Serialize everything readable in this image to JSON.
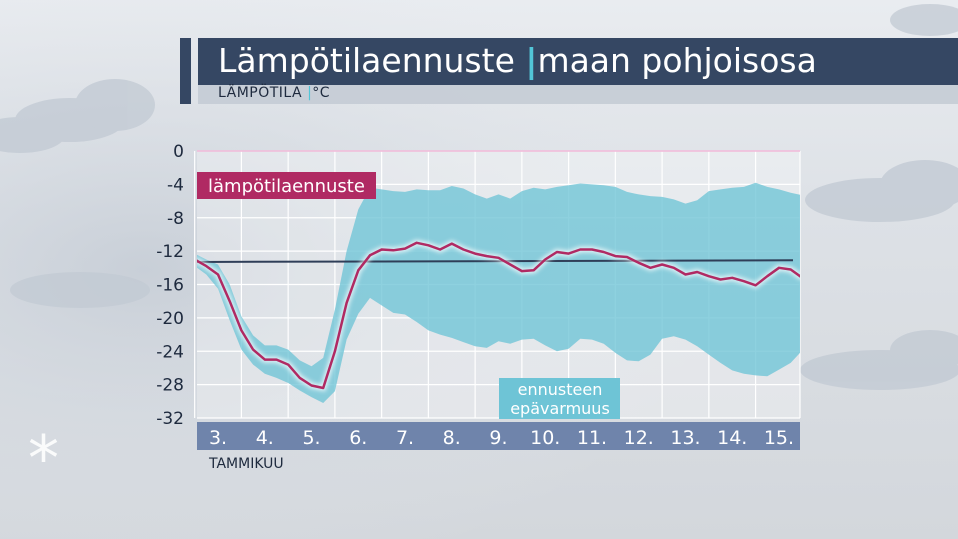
{
  "header": {
    "title_main": "Lämpötilaennuste",
    "title_sep": "|",
    "title_region": "maan pohjoisosa",
    "subtitle_quantity": "LÄMPÖTILA",
    "subtitle_sep": "|",
    "subtitle_unit": "°C"
  },
  "decor": {
    "asterisk_glyph": "*"
  },
  "colors": {
    "title_bg": "#354763",
    "accent_cyan": "#52c6d8",
    "forecast_line": "#b02a63",
    "uncertainty_band": "#6ec4d6",
    "average_line": "#2f3e58",
    "axis_bar": "#6f84ab"
  },
  "chart_data": {
    "type": "line",
    "y_ticks": [
      0,
      -4,
      -8,
      -12,
      -16,
      -20,
      -24,
      -28,
      -32
    ],
    "ylim": [
      -32,
      0
    ],
    "x_ticks": [
      "3.",
      "4.",
      "5.",
      "6.",
      "7.",
      "8.",
      "9.",
      "10.",
      "11.",
      "12.",
      "13.",
      "14.",
      "15."
    ],
    "xlim": [
      2.55,
      15.45
    ],
    "xlabel": "TAMMIKUU",
    "grid": true,
    "series": [
      {
        "name": "lämpötilaennuste",
        "x": [
          2.5,
          2.75,
          3.0,
          3.25,
          3.5,
          3.75,
          4.0,
          4.25,
          4.5,
          4.75,
          5.0,
          5.25,
          5.5,
          5.75,
          6.0,
          6.25,
          6.5,
          6.75,
          7.0,
          7.25,
          7.5,
          7.75,
          8.0,
          8.25,
          8.5,
          8.75,
          9.0,
          9.25,
          9.5,
          9.75,
          10.0,
          10.25,
          10.5,
          10.75,
          11.0,
          11.25,
          11.5,
          11.75,
          12.0,
          12.25,
          12.5,
          12.75,
          13.0,
          13.25,
          13.5,
          13.75,
          14.0,
          14.25,
          14.5,
          14.75,
          15.0,
          15.25,
          15.5
        ],
        "values": [
          -13.0,
          -13.8,
          -14.8,
          -18.0,
          -21.5,
          -23.8,
          -25.0,
          -25.0,
          -25.6,
          -27.2,
          -28.1,
          -28.4,
          -24.0,
          -18.2,
          -14.3,
          -12.5,
          -11.8,
          -11.9,
          -11.7,
          -11.0,
          -11.3,
          -11.8,
          -11.1,
          -11.8,
          -12.3,
          -12.6,
          -12.8,
          -13.6,
          -14.4,
          -14.3,
          -13.0,
          -12.1,
          -12.3,
          -11.8,
          -11.8,
          -12.1,
          -12.6,
          -12.7,
          -13.4,
          -14.0,
          -13.6,
          -14.0,
          -14.8,
          -14.5,
          -15.0,
          -15.4,
          -15.2,
          -15.6,
          -16.1,
          -15.0,
          -14.0,
          -14.2,
          -15.2
        ]
      },
      {
        "name": "average",
        "x": [
          2.55,
          15.3
        ],
        "values": [
          -13.3,
          -13.1
        ]
      }
    ],
    "band": {
      "name": "ennusteen epävarmuus",
      "x": [
        2.5,
        2.75,
        3.0,
        3.25,
        3.5,
        3.75,
        4.0,
        4.25,
        4.5,
        4.75,
        5.0,
        5.25,
        5.5,
        5.75,
        6.0,
        6.25,
        6.5,
        6.75,
        7.0,
        7.25,
        7.5,
        7.75,
        8.0,
        8.25,
        8.5,
        8.75,
        9.0,
        9.25,
        9.5,
        9.75,
        10.0,
        10.25,
        10.5,
        10.75,
        11.0,
        11.25,
        11.5,
        11.75,
        12.0,
        12.25,
        12.5,
        12.75,
        13.0,
        13.25,
        13.5,
        13.75,
        14.0,
        14.25,
        14.5,
        14.75,
        15.0,
        15.25,
        15.5
      ],
      "upper": [
        -12.3,
        -13.0,
        -13.6,
        -16.0,
        -19.8,
        -22.1,
        -23.3,
        -23.3,
        -23.8,
        -25.1,
        -25.8,
        -24.8,
        -19.0,
        -12.0,
        -7.0,
        -4.4,
        -4.6,
        -4.8,
        -4.9,
        -4.6,
        -4.7,
        -4.7,
        -4.2,
        -4.5,
        -5.2,
        -5.7,
        -5.2,
        -5.7,
        -4.8,
        -4.4,
        -4.6,
        -4.3,
        -4.1,
        -3.9,
        -4.0,
        -4.1,
        -4.3,
        -4.9,
        -5.2,
        -5.4,
        -5.5,
        -5.8,
        -6.3,
        -5.9,
        -4.8,
        -4.6,
        -4.4,
        -4.3,
        -3.8,
        -4.3,
        -4.6,
        -5.0,
        -5.3
      ],
      "lower": [
        -13.8,
        -14.8,
        -16.5,
        -20.3,
        -23.8,
        -25.6,
        -26.7,
        -27.2,
        -27.8,
        -28.7,
        -29.5,
        -30.2,
        -28.8,
        -22.6,
        -19.5,
        -17.6,
        -18.5,
        -19.4,
        -19.6,
        -20.5,
        -21.5,
        -22.0,
        -22.4,
        -22.9,
        -23.4,
        -23.6,
        -22.8,
        -23.1,
        -22.6,
        -22.5,
        -23.3,
        -24.0,
        -23.7,
        -22.5,
        -22.6,
        -23.1,
        -24.2,
        -25.1,
        -25.2,
        -24.4,
        -22.5,
        -22.2,
        -22.6,
        -23.4,
        -24.4,
        -25.4,
        -26.3,
        -26.7,
        -26.9,
        -27.0,
        -26.2,
        -25.4,
        -23.9
      ]
    },
    "annotations": [
      {
        "text": "lämpötilaennuste"
      },
      {
        "text": "ennusteen",
        "text2": "epävarmuus"
      }
    ]
  }
}
